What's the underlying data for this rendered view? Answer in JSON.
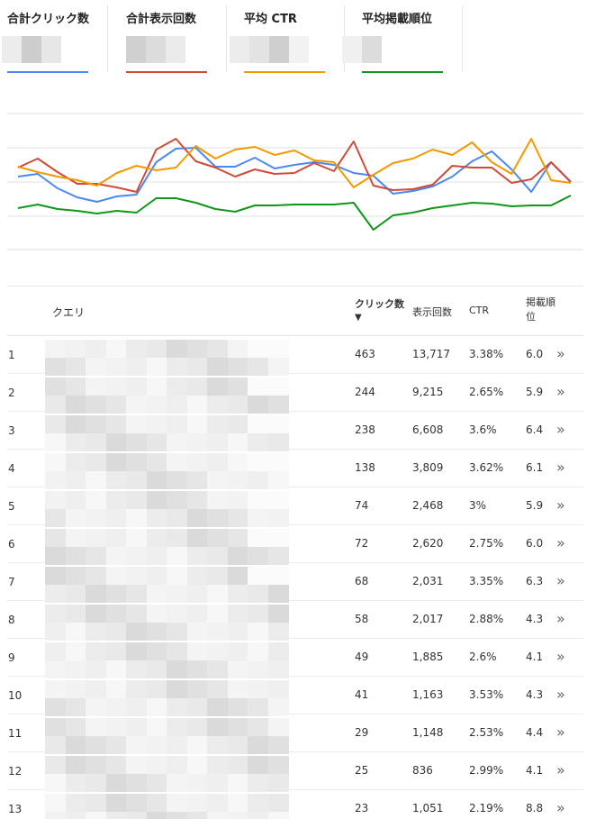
{
  "metrics": [
    {
      "id": "clicks",
      "label": "合計クリック数",
      "color": "#4a89f3"
    },
    {
      "id": "impressions",
      "label": "合計表示回数",
      "color": "#d04a36"
    },
    {
      "id": "ctr",
      "label": "平均 CTR",
      "color": "#f29900"
    },
    {
      "id": "position",
      "label": "平均掲載順位",
      "color": "#109618"
    }
  ],
  "chart_data": {
    "type": "line",
    "grid": true,
    "series": [
      {
        "color": "#4a89f3",
        "values": [
          196,
          193,
          209,
          219,
          224,
          218,
          216,
          180,
          165,
          164,
          185,
          185,
          175,
          187,
          183,
          180,
          183,
          192,
          195,
          215,
          212,
          207,
          196,
          179,
          168,
          188,
          213,
          180,
          202
        ]
      },
      {
        "color": "#d04a36",
        "values": [
          186,
          176,
          191,
          204,
          204,
          208,
          213,
          166,
          154,
          179,
          186,
          196,
          188,
          193,
          192,
          181,
          190,
          157,
          206,
          211,
          210,
          205,
          184,
          186,
          186,
          203,
          199,
          180,
          202
        ]
      },
      {
        "color": "#f29900",
        "values": [
          185,
          191,
          196,
          200,
          206,
          192,
          184,
          189,
          186,
          162,
          176,
          166,
          163,
          172,
          167,
          178,
          180,
          208,
          194,
          181,
          176,
          166,
          172,
          158,
          180,
          193,
          154,
          200,
          203
        ]
      },
      {
        "color": "#109618",
        "values": [
          231,
          227,
          232,
          234,
          237,
          234,
          236,
          220,
          220,
          225,
          232,
          235,
          228,
          228,
          227,
          227,
          227,
          225,
          255,
          239,
          236,
          231,
          228,
          225,
          226,
          229,
          228,
          228,
          217
        ]
      }
    ]
  },
  "table": {
    "headers": {
      "query": "クエリ",
      "clicks": "クリック数",
      "sort_arrow": "▼",
      "impressions": "表示回数",
      "ctr": "CTR",
      "position": "掲載順位"
    },
    "rows": [
      {
        "idx": "1",
        "clicks": "463",
        "impressions": "13,717",
        "ctr": "3.38%",
        "position": "6.0"
      },
      {
        "idx": "2",
        "clicks": "244",
        "impressions": "9,215",
        "ctr": "2.65%",
        "position": "5.9"
      },
      {
        "idx": "3",
        "clicks": "238",
        "impressions": "6,608",
        "ctr": "3.6%",
        "position": "6.4"
      },
      {
        "idx": "4",
        "clicks": "138",
        "impressions": "3,809",
        "ctr": "3.62%",
        "position": "6.1"
      },
      {
        "idx": "5",
        "clicks": "74",
        "impressions": "2,468",
        "ctr": "3%",
        "position": "5.9"
      },
      {
        "idx": "6",
        "clicks": "72",
        "impressions": "2,620",
        "ctr": "2.75%",
        "position": "6.0"
      },
      {
        "idx": "7",
        "clicks": "68",
        "impressions": "2,031",
        "ctr": "3.35%",
        "position": "6.3"
      },
      {
        "idx": "8",
        "clicks": "58",
        "impressions": "2,017",
        "ctr": "2.88%",
        "position": "4.3"
      },
      {
        "idx": "9",
        "clicks": "49",
        "impressions": "1,885",
        "ctr": "2.6%",
        "position": "4.1"
      },
      {
        "idx": "10",
        "clicks": "41",
        "impressions": "1,163",
        "ctr": "3.53%",
        "position": "4.3"
      },
      {
        "idx": "11",
        "clicks": "29",
        "impressions": "1,148",
        "ctr": "2.53%",
        "position": "4.4"
      },
      {
        "idx": "12",
        "clicks": "25",
        "impressions": "836",
        "ctr": "2.99%",
        "position": "4.1"
      },
      {
        "idx": "13",
        "clicks": "23",
        "impressions": "1,051",
        "ctr": "2.19%",
        "position": "8.8"
      }
    ],
    "row_action_icon": "double-chevron-right-icon"
  }
}
